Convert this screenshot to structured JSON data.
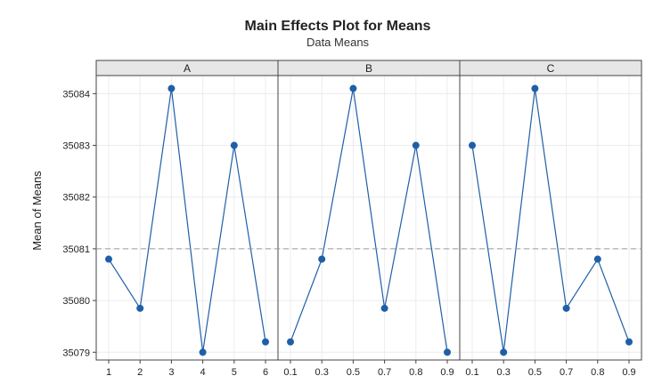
{
  "chart_data": {
    "type": "line",
    "title": "Main Effects Plot for Means",
    "subtitle": "Data Means",
    "ylabel": "Mean of Means",
    "ylim": [
      35078.85,
      35084.35
    ],
    "yticks": [
      35079,
      35080,
      35081,
      35082,
      35083,
      35084
    ],
    "reference_line": 35081,
    "grid": true,
    "color": "#1f5fa8",
    "panels": [
      {
        "name": "A",
        "categories": [
          "1",
          "2",
          "3",
          "4",
          "5",
          "6"
        ],
        "values": [
          35080.8,
          35079.85,
          35084.1,
          35079.0,
          35083.0,
          35079.2
        ]
      },
      {
        "name": "B",
        "categories": [
          "0.1",
          "0.3",
          "0.5",
          "0.7",
          "0.8",
          "0.9"
        ],
        "values": [
          35079.2,
          35080.8,
          35084.1,
          35079.85,
          35083.0,
          35079.0
        ]
      },
      {
        "name": "C",
        "categories": [
          "0.1",
          "0.3",
          "0.5",
          "0.7",
          "0.8",
          "0.9"
        ],
        "values": [
          35083.0,
          35079.0,
          35084.1,
          35079.85,
          35080.8,
          35079.2
        ]
      }
    ]
  }
}
